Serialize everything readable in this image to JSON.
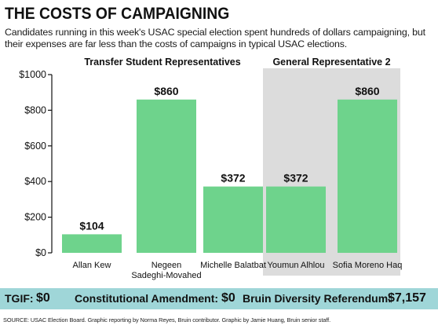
{
  "header": {
    "title": "THE COSTS OF CAMPAIGNING",
    "subtitle": "Candidates running in this week's USAC special election spent hundreds of dollars campaigning, but their expenses are far less than the costs of campaigns in typical USAC elections."
  },
  "chart_data": {
    "type": "bar",
    "categories": [
      "Allan Kew",
      "Negeen Sadeghi-Movahed",
      "Michelle Balatbat",
      "Youmun Alhlou",
      "Sofia Moreno Haq"
    ],
    "category_lines": [
      [
        "Allan Kew"
      ],
      [
        "Negeen",
        "Sadeghi-Movahed"
      ],
      [
        "Michelle Balatbat"
      ],
      [
        "Youmun Alhlou"
      ],
      [
        "Sofia Moreno Haq"
      ]
    ],
    "values": [
      104,
      860,
      372,
      372,
      860
    ],
    "value_labels": [
      "$104",
      "$860",
      "$372",
      "$372",
      "$860"
    ],
    "groups": [
      {
        "label": "Transfer Student Representatives",
        "categories": [
          0,
          1,
          2
        ],
        "shaded": false
      },
      {
        "label": "General Representative 2",
        "categories": [
          3,
          4
        ],
        "shaded": true
      }
    ],
    "ylim": [
      0,
      1000
    ],
    "yticks": [
      0,
      200,
      400,
      600,
      800,
      1000
    ],
    "ytick_labels": [
      "$0",
      "$200",
      "$400",
      "$600",
      "$800",
      "$1000"
    ],
    "grid": false,
    "bar_color": "#6ed38c",
    "group_shade_color": "#dcdcdc"
  },
  "footer": {
    "tgif_label": "TGIF:",
    "tgif_value": "$0",
    "amendment_label": "Constitutional Amendment:",
    "amendment_value": "$0",
    "referendum_label": "Bruin Diversity Referendum:",
    "referendum_value": "$7,157",
    "bar_color": "#9fd6d8"
  },
  "source": "SOURCE: USAC Election Board. Graphic reporting by Norma Reyes, Bruin contributor. Graphic by Jamie Huang, Bruin senior staff."
}
